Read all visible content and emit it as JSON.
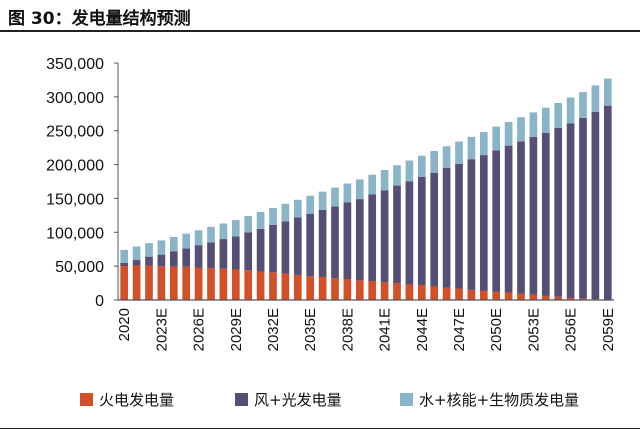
{
  "title": "图 30：发电量结构预测",
  "chart_data": {
    "type": "bar",
    "stacked": true,
    "categories": [
      "2020",
      "2021E",
      "2022E",
      "2023E",
      "2024E",
      "2025E",
      "2026E",
      "2027E",
      "2028E",
      "2029E",
      "2030E",
      "2031E",
      "2032E",
      "2033E",
      "2034E",
      "2035E",
      "2036E",
      "2037E",
      "2038E",
      "2039E",
      "2040E",
      "2041E",
      "2042E",
      "2043E",
      "2044E",
      "2045E",
      "2046E",
      "2047E",
      "2048E",
      "2049E",
      "2050E",
      "2051E",
      "2052E",
      "2053E",
      "2054E",
      "2055E",
      "2056E",
      "2057E",
      "2058E",
      "2059E"
    ],
    "tick_labels": [
      "2020",
      "2023E",
      "2026E",
      "2029E",
      "2032E",
      "2035E",
      "2038E",
      "2041E",
      "2044E",
      "2047E",
      "2050E",
      "2053E",
      "2056E",
      "2059E"
    ],
    "y_ticks": [
      "0",
      "50,000",
      "100,000",
      "150,000",
      "200,000",
      "250,000",
      "300,000",
      "350,000"
    ],
    "ylim": [
      0,
      350000
    ],
    "legend_position": "bottom",
    "series": [
      {
        "name": "火电发电量",
        "color": "#d24f2a",
        "values": [
          50000,
          51000,
          51000,
          50000,
          49000,
          49000,
          48000,
          47000,
          46000,
          45000,
          44000,
          42000,
          41000,
          39000,
          37000,
          35000,
          34000,
          32000,
          31000,
          29000,
          28000,
          26000,
          25000,
          23000,
          22000,
          20000,
          18000,
          17000,
          15000,
          14000,
          12000,
          11000,
          9000,
          8000,
          6000,
          5000,
          3000,
          2000,
          1000,
          0
        ]
      },
      {
        "name": "风+光发电量",
        "color": "#574e74",
        "values": [
          5000,
          8000,
          13000,
          17000,
          23000,
          27000,
          33000,
          38000,
          44000,
          49000,
          56000,
          63000,
          70000,
          77000,
          85000,
          92000,
          99000,
          106000,
          113000,
          120000,
          128000,
          136000,
          144000,
          152000,
          160000,
          168000,
          177000,
          184000,
          193000,
          200000,
          209000,
          217000,
          225000,
          233000,
          241000,
          249000,
          258000,
          267000,
          277000,
          287000
        ]
      },
      {
        "name": "水+核能+生物质发电量",
        "color": "#8ab5c6",
        "values": [
          19000,
          20000,
          20000,
          21000,
          21000,
          22000,
          22000,
          23000,
          23000,
          24000,
          24000,
          25000,
          25000,
          26000,
          26000,
          27000,
          27000,
          28000,
          28000,
          29000,
          29000,
          30000,
          30000,
          31000,
          31000,
          32000,
          32000,
          33000,
          33000,
          34000,
          35000,
          35000,
          36000,
          36000,
          37000,
          37000,
          38000,
          38000,
          39000,
          40000
        ]
      }
    ]
  }
}
